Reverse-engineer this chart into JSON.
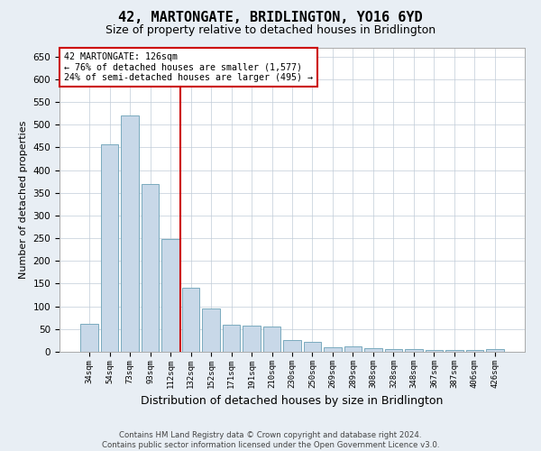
{
  "title": "42, MARTONGATE, BRIDLINGTON, YO16 6YD",
  "subtitle": "Size of property relative to detached houses in Bridlington",
  "xlabel": "Distribution of detached houses by size in Bridlington",
  "ylabel": "Number of detached properties",
  "categories": [
    "34sqm",
    "54sqm",
    "73sqm",
    "93sqm",
    "112sqm",
    "132sqm",
    "152sqm",
    "171sqm",
    "191sqm",
    "210sqm",
    "230sqm",
    "250sqm",
    "269sqm",
    "289sqm",
    "308sqm",
    "328sqm",
    "348sqm",
    "367sqm",
    "387sqm",
    "406sqm",
    "426sqm"
  ],
  "values": [
    62,
    457,
    521,
    369,
    248,
    140,
    95,
    60,
    57,
    55,
    25,
    22,
    10,
    12,
    7,
    6,
    6,
    4,
    4,
    4,
    5
  ],
  "bar_color": "#c8d8e8",
  "bar_edge_color": "#7aaabe",
  "vline_color": "#cc0000",
  "annotation_text": "42 MARTONGATE: 126sqm\n← 76% of detached houses are smaller (1,577)\n24% of semi-detached houses are larger (495) →",
  "annotation_box_color": "#ffffff",
  "annotation_box_edge": "#cc0000",
  "ylim": [
    0,
    670
  ],
  "yticks": [
    0,
    50,
    100,
    150,
    200,
    250,
    300,
    350,
    400,
    450,
    500,
    550,
    600,
    650
  ],
  "footer": "Contains HM Land Registry data © Crown copyright and database right 2024.\nContains public sector information licensed under the Open Government Licence v3.0.",
  "bg_color": "#e8eef4",
  "plot_bg_color": "#ffffff",
  "grid_color": "#c0ccd8",
  "title_fontsize": 11,
  "subtitle_fontsize": 9,
  "ylabel_fontsize": 8,
  "xlabel_fontsize": 9
}
